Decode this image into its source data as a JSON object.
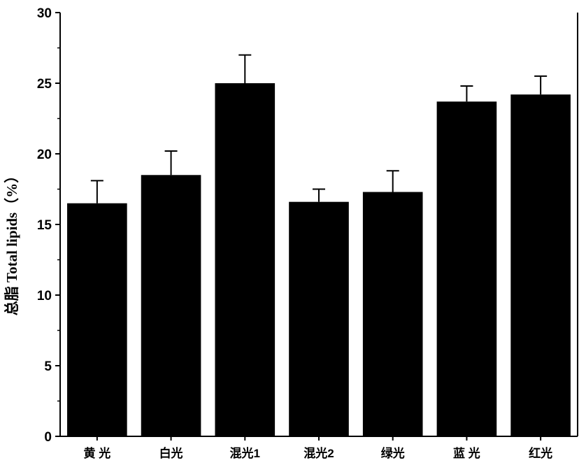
{
  "chart_data": {
    "type": "bar",
    "title": "",
    "xlabel": "",
    "ylabel": "总脂 Total lipids（%）",
    "categories": [
      "黄 光",
      "白光",
      "混光1",
      "混光2",
      "绿光",
      "蓝 光",
      "红光"
    ],
    "values": [
      16.5,
      18.5,
      25.0,
      16.6,
      17.3,
      23.7,
      24.2
    ],
    "error": [
      1.6,
      1.7,
      2.0,
      0.9,
      1.5,
      1.1,
      1.3
    ],
    "ylim": [
      0,
      30
    ],
    "yticks": [
      "0",
      "5",
      "10",
      "15",
      "20",
      "25",
      "30"
    ],
    "bar_color": "#000000",
    "grid": false,
    "legend": "none"
  }
}
